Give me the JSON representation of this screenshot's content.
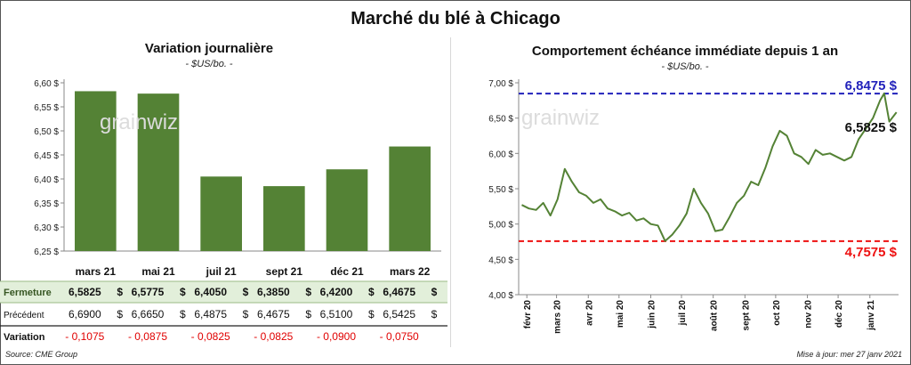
{
  "title": "Marché du blé à Chicago",
  "left": {
    "title": "Variation journalière",
    "unit": "- $US/bo. -"
  },
  "right": {
    "title": "Comportement échéance immédiate depuis 1 an",
    "unit": "- $US/bo. -"
  },
  "footer": {
    "source": "Source: CME Group",
    "update": "Mise à jour: mer 27 janv 2021"
  },
  "table": {
    "rows": [
      {
        "label": "Fermeture",
        "values": [
          "6,5825",
          "6,5775",
          "6,4050",
          "6,3850",
          "6,4200",
          "6,4675"
        ],
        "unit": "$"
      },
      {
        "label": "Précédent",
        "values": [
          "6,6900",
          "6,6650",
          "6,4875",
          "6,4675",
          "6,5100",
          "6,5425"
        ],
        "unit": "$"
      },
      {
        "label": "Variation",
        "values": [
          "- 0,1075",
          "- 0,0875",
          "- 0,0825",
          "- 0,0825",
          "- 0,0900",
          "- 0,0750"
        ]
      }
    ],
    "colors": {
      "fermeture_bg": "#e2efda",
      "variation_text": "#e00000"
    }
  },
  "colors": {
    "bar": "#548235",
    "line": "#548235",
    "high": "#2222bb",
    "low": "#ee1111"
  },
  "chart_data": [
    {
      "type": "bar",
      "title": "Variation journalière",
      "categories": [
        "mars 21",
        "mai 21",
        "juil 21",
        "sept 21",
        "déc 21",
        "mars 22"
      ],
      "values": [
        6.5825,
        6.5775,
        6.405,
        6.385,
        6.42,
        6.4675
      ],
      "ylim": [
        6.25,
        6.6
      ],
      "yticks": [
        "6,25 $",
        "6,30 $",
        "6,35 $",
        "6,40 $",
        "6,45 $",
        "6,50 $",
        "6,55 $",
        "6,60 $"
      ],
      "ytick_values": [
        6.25,
        6.3,
        6.35,
        6.4,
        6.45,
        6.5,
        6.55,
        6.6
      ],
      "grid": false
    },
    {
      "type": "line",
      "title": "Comportement échéance immédiate depuis 1 an",
      "ylim": [
        4.0,
        7.0
      ],
      "yticks": [
        "4,00 $",
        "4,50 $",
        "5,00 $",
        "5,50 $",
        "6,00 $",
        "6,50 $",
        "7,00 $"
      ],
      "ytick_values": [
        4.0,
        4.5,
        5.0,
        5.5,
        6.0,
        6.5,
        7.0
      ],
      "xticks": [
        "févr 20",
        "mars 20",
        "avr 20",
        "mai 20",
        "juin 20",
        "juil 20",
        "août 20",
        "sept 20",
        "oct 20",
        "nov 20",
        "déc 20",
        "janv 21"
      ],
      "x": [
        "2020-01-27",
        "2020-02-03",
        "2020-02-10",
        "2020-02-17",
        "2020-02-24",
        "2020-03-02",
        "2020-03-09",
        "2020-03-16",
        "2020-03-23",
        "2020-03-30",
        "2020-04-06",
        "2020-04-13",
        "2020-04-20",
        "2020-04-27",
        "2020-05-04",
        "2020-05-11",
        "2020-05-18",
        "2020-05-25",
        "2020-06-01",
        "2020-06-08",
        "2020-06-15",
        "2020-06-22",
        "2020-06-29",
        "2020-07-06",
        "2020-07-13",
        "2020-07-20",
        "2020-07-27",
        "2020-08-03",
        "2020-08-10",
        "2020-08-17",
        "2020-08-24",
        "2020-08-31",
        "2020-09-07",
        "2020-09-14",
        "2020-09-21",
        "2020-09-28",
        "2020-10-05",
        "2020-10-12",
        "2020-10-19",
        "2020-10-26",
        "2020-11-02",
        "2020-11-09",
        "2020-11-16",
        "2020-11-23",
        "2020-11-30",
        "2020-12-07",
        "2020-12-14",
        "2020-12-21",
        "2020-12-28",
        "2021-01-04",
        "2021-01-11",
        "2021-01-15",
        "2021-01-20",
        "2021-01-27"
      ],
      "values": [
        5.27,
        5.22,
        5.2,
        5.3,
        5.12,
        5.35,
        5.78,
        5.6,
        5.45,
        5.4,
        5.3,
        5.35,
        5.22,
        5.18,
        5.12,
        5.16,
        5.05,
        5.08,
        5.0,
        4.98,
        4.76,
        4.85,
        4.98,
        5.15,
        5.5,
        5.3,
        5.15,
        4.9,
        4.92,
        5.1,
        5.3,
        5.4,
        5.6,
        5.55,
        5.8,
        6.1,
        6.32,
        6.25,
        6.0,
        5.95,
        5.85,
        6.05,
        5.98,
        6.0,
        5.95,
        5.9,
        5.95,
        6.2,
        6.35,
        6.5,
        6.75,
        6.85,
        6.45,
        6.5825
      ],
      "series": [
        {
          "values_ref": "values"
        }
      ],
      "reference_lines": [
        {
          "value": 6.8475,
          "label": "6,8475 $",
          "color": "#2222bb",
          "style": "dashed"
        },
        {
          "value": 4.7575,
          "label": "4,7575 $",
          "color": "#ee1111",
          "style": "dashed"
        }
      ],
      "annotations": [
        {
          "label": "6,5825 $",
          "value": 6.5825
        }
      ],
      "grid": false
    }
  ]
}
